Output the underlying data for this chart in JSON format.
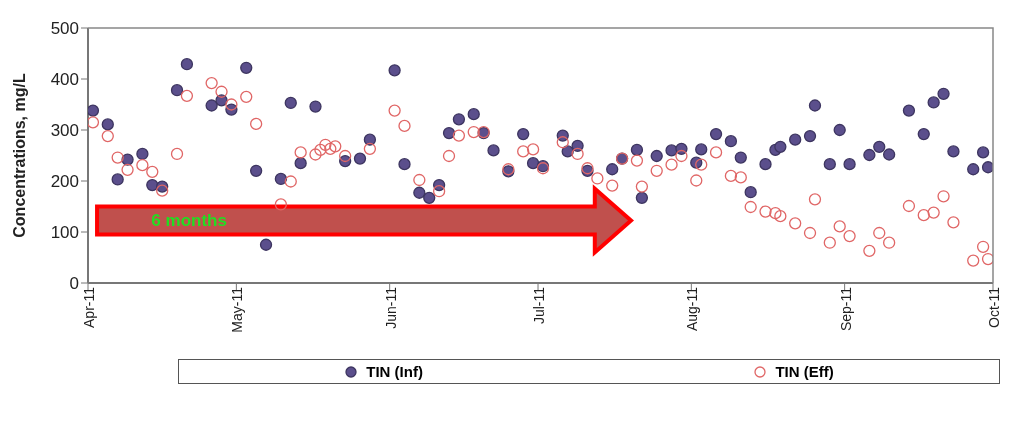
{
  "chart_data": {
    "type": "scatter",
    "ylabel": "Concentrations, mg/L",
    "ylim": [
      0,
      500
    ],
    "yticks": [
      0,
      100,
      200,
      300,
      400,
      500
    ],
    "xlim": [
      "2011-04-01",
      "2011-10-01"
    ],
    "xticks": [
      {
        "value": "2011-04-01",
        "label": "Apr-11"
      },
      {
        "value": "2011-05-01",
        "label": "May-11"
      },
      {
        "value": "2011-06-01",
        "label": "Jun-11"
      },
      {
        "value": "2011-07-01",
        "label": "Jul-11"
      },
      {
        "value": "2011-08-01",
        "label": "Aug-11"
      },
      {
        "value": "2011-09-01",
        "label": "Sep-11"
      },
      {
        "value": "2011-10-01",
        "label": "Oct-11"
      }
    ],
    "legend": "bottom",
    "marker": "circle",
    "annotations": [
      "6 months"
    ],
    "series": [
      {
        "name": "TIN (Inf)",
        "color": "#5b4f8c",
        "x": [
          "2011-04-02",
          "2011-04-05",
          "2011-04-07",
          "2011-04-09",
          "2011-04-12",
          "2011-04-14",
          "2011-04-16",
          "2011-04-19",
          "2011-04-21",
          "2011-04-26",
          "2011-04-28",
          "2011-04-30",
          "2011-05-03",
          "2011-05-05",
          "2011-05-07",
          "2011-05-10",
          "2011-05-12",
          "2011-05-14",
          "2011-05-17",
          "2011-05-23",
          "2011-05-26",
          "2011-05-28",
          "2011-06-02",
          "2011-06-04",
          "2011-06-07",
          "2011-06-09",
          "2011-06-11",
          "2011-06-13",
          "2011-06-15",
          "2011-06-18",
          "2011-06-20",
          "2011-06-22",
          "2011-06-25",
          "2011-06-28",
          "2011-06-30",
          "2011-07-02",
          "2011-07-06",
          "2011-07-07",
          "2011-07-09",
          "2011-07-11",
          "2011-07-16",
          "2011-07-18",
          "2011-07-21",
          "2011-07-22",
          "2011-07-25",
          "2011-07-28",
          "2011-07-30",
          "2011-08-02",
          "2011-08-03",
          "2011-08-06",
          "2011-08-09",
          "2011-08-11",
          "2011-08-13",
          "2011-08-16",
          "2011-08-18",
          "2011-08-19",
          "2011-08-22",
          "2011-08-25",
          "2011-08-26",
          "2011-08-29",
          "2011-08-31",
          "2011-09-02",
          "2011-09-06",
          "2011-09-08",
          "2011-09-10",
          "2011-09-14",
          "2011-09-17",
          "2011-09-19",
          "2011-09-21",
          "2011-09-23",
          "2011-09-27",
          "2011-09-29",
          "2011-09-30"
        ],
        "values": [
          338,
          311,
          203,
          242,
          253,
          192,
          189,
          378,
          429,
          348,
          358,
          340,
          422,
          220,
          75,
          204,
          353,
          235,
          346,
          239,
          244,
          281,
          417,
          233,
          177,
          167,
          192,
          294,
          321,
          331,
          294,
          260,
          219,
          292,
          235,
          229,
          289,
          258,
          269,
          220,
          223,
          244,
          261,
          167,
          249,
          260,
          263,
          236,
          262,
          292,
          278,
          246,
          178,
          233,
          261,
          267,
          281,
          288,
          348,
          233,
          300,
          233,
          251,
          267,
          252,
          338,
          292,
          354,
          371,
          258,
          223,
          256,
          227
        ]
      },
      {
        "name": "TIN (Eff)",
        "color": "#e06666",
        "x": [
          "2011-04-02",
          "2011-04-05",
          "2011-04-07",
          "2011-04-09",
          "2011-04-12",
          "2011-04-14",
          "2011-04-16",
          "2011-04-19",
          "2011-04-21",
          "2011-04-26",
          "2011-04-28",
          "2011-04-30",
          "2011-05-03",
          "2011-05-05",
          "2011-05-10",
          "2011-05-12",
          "2011-05-14",
          "2011-05-17",
          "2011-05-18",
          "2011-05-19",
          "2011-05-20",
          "2011-05-21",
          "2011-05-23",
          "2011-05-28",
          "2011-06-02",
          "2011-06-04",
          "2011-06-07",
          "2011-06-11",
          "2011-06-13",
          "2011-06-15",
          "2011-06-18",
          "2011-06-20",
          "2011-06-25",
          "2011-06-28",
          "2011-06-30",
          "2011-07-02",
          "2011-07-06",
          "2011-07-09",
          "2011-07-11",
          "2011-07-13",
          "2011-07-16",
          "2011-07-18",
          "2011-07-21",
          "2011-07-22",
          "2011-07-25",
          "2011-07-28",
          "2011-07-30",
          "2011-08-02",
          "2011-08-03",
          "2011-08-06",
          "2011-08-09",
          "2011-08-11",
          "2011-08-13",
          "2011-08-16",
          "2011-08-18",
          "2011-08-19",
          "2011-08-22",
          "2011-08-25",
          "2011-08-26",
          "2011-08-29",
          "2011-08-31",
          "2011-09-02",
          "2011-09-06",
          "2011-09-08",
          "2011-09-10",
          "2011-09-14",
          "2011-09-17",
          "2011-09-19",
          "2011-09-21",
          "2011-09-23",
          "2011-09-27",
          "2011-09-29",
          "2011-09-30"
        ],
        "values": [
          315,
          288,
          246,
          222,
          231,
          218,
          181,
          253,
          367,
          392,
          375,
          350,
          365,
          312,
          154,
          199,
          256,
          252,
          261,
          271,
          263,
          268,
          249,
          263,
          338,
          308,
          202,
          180,
          249,
          289,
          296,
          296,
          223,
          258,
          262,
          225,
          276,
          253,
          225,
          205,
          191,
          244,
          240,
          189,
          220,
          232,
          249,
          201,
          232,
          256,
          210,
          207,
          149,
          140,
          137,
          131,
          117,
          98,
          164,
          79,
          111,
          92,
          63,
          98,
          79,
          151,
          133,
          138,
          170,
          119,
          44,
          71,
          47
        ]
      }
    ]
  }
}
